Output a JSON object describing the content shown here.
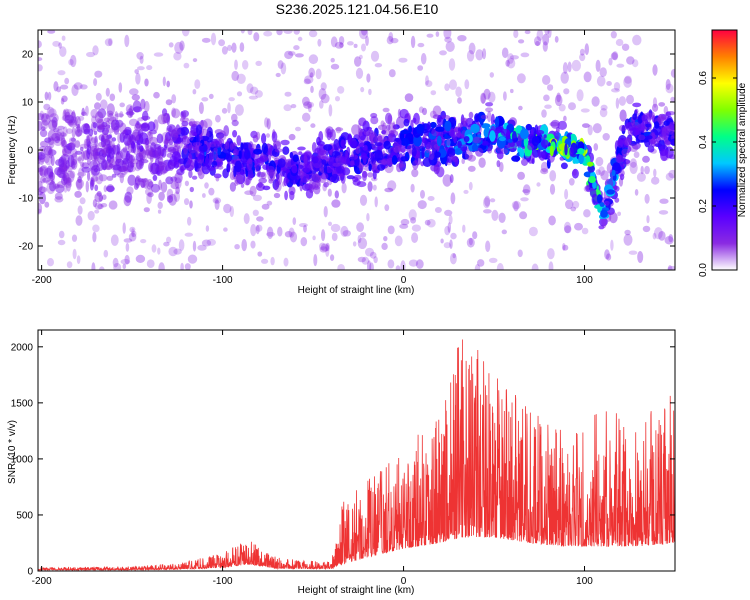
{
  "title": "S236.2025.121.04.56.E10",
  "chart_data": [
    {
      "type": "heatmap",
      "xlabel": "Height of straight line (km)",
      "ylabel": "Frequency (Hz)",
      "xlim": [
        -202,
        150
      ],
      "ylim": [
        -25,
        25
      ],
      "x_ticks": [
        -200,
        -100,
        0,
        100
      ],
      "y_ticks": [
        -20,
        -10,
        0,
        10,
        20
      ],
      "colorbar": {
        "label": "Normalized spectral amplitude",
        "range": [
          0,
          0.75
        ],
        "ticks": [
          0.0,
          0.2,
          0.4,
          0.6
        ],
        "tick_labels": [
          "0.0",
          "0.2",
          "0.4",
          "0.6"
        ],
        "colormap": [
          "#ffffff",
          "#8a2be2",
          "#5a00ff",
          "#0000ff",
          "#00c8ff",
          "#00ff88",
          "#80ff00",
          "#ffff00",
          "#ff8000",
          "#ff0040"
        ]
      },
      "band_profile": [
        {
          "x": -200,
          "center": 0,
          "width": 25,
          "level": 0.1
        },
        {
          "x": -130,
          "center": 0,
          "width": 22,
          "level": 0.14
        },
        {
          "x": -110,
          "center": 0,
          "width": 10,
          "level": 0.22
        },
        {
          "x": -60,
          "center": -4,
          "width": 11,
          "level": 0.2
        },
        {
          "x": 0,
          "center": 1,
          "width": 12,
          "level": 0.22
        },
        {
          "x": 50,
          "center": 3,
          "width": 9,
          "level": 0.28
        },
        {
          "x": 80,
          "center": 1,
          "width": 6,
          "level": 0.42
        },
        {
          "x": 100,
          "center": 0,
          "width": 6,
          "level": 0.5
        },
        {
          "x": 110,
          "center": -14,
          "width": 8,
          "level": 0.3
        },
        {
          "x": 125,
          "center": 5,
          "width": 10,
          "level": 0.22
        },
        {
          "x": 150,
          "center": 3,
          "width": 8,
          "level": 0.2
        }
      ]
    },
    {
      "type": "line",
      "xlabel": "Height of straight line (km)",
      "ylabel": "SNR (10 * v/v)",
      "xlim": [
        -202,
        150
      ],
      "ylim": [
        0,
        2150
      ],
      "x_ticks": [
        -200,
        -100,
        0,
        100
      ],
      "y_ticks": [
        0,
        500,
        1000,
        1500,
        2000
      ],
      "color": "#ee3333",
      "envelope": [
        {
          "x": -202,
          "base": 10,
          "peak": 35
        },
        {
          "x": -150,
          "base": 10,
          "peak": 40
        },
        {
          "x": -125,
          "base": 15,
          "peak": 70
        },
        {
          "x": -100,
          "base": 30,
          "peak": 160
        },
        {
          "x": -85,
          "base": 60,
          "peak": 300
        },
        {
          "x": -70,
          "base": 20,
          "peak": 120
        },
        {
          "x": -40,
          "base": 20,
          "peak": 80
        },
        {
          "x": -34,
          "base": 60,
          "peak": 650
        },
        {
          "x": -20,
          "base": 120,
          "peak": 850
        },
        {
          "x": 0,
          "base": 200,
          "peak": 1050
        },
        {
          "x": 20,
          "base": 250,
          "peak": 1550
        },
        {
          "x": 32,
          "base": 300,
          "peak": 2150
        },
        {
          "x": 50,
          "base": 300,
          "peak": 1800
        },
        {
          "x": 70,
          "base": 250,
          "peak": 1450
        },
        {
          "x": 90,
          "base": 220,
          "peak": 1300
        },
        {
          "x": 110,
          "base": 220,
          "peak": 1450
        },
        {
          "x": 130,
          "base": 220,
          "peak": 1350
        },
        {
          "x": 150,
          "base": 250,
          "peak": 1600
        }
      ]
    }
  ]
}
